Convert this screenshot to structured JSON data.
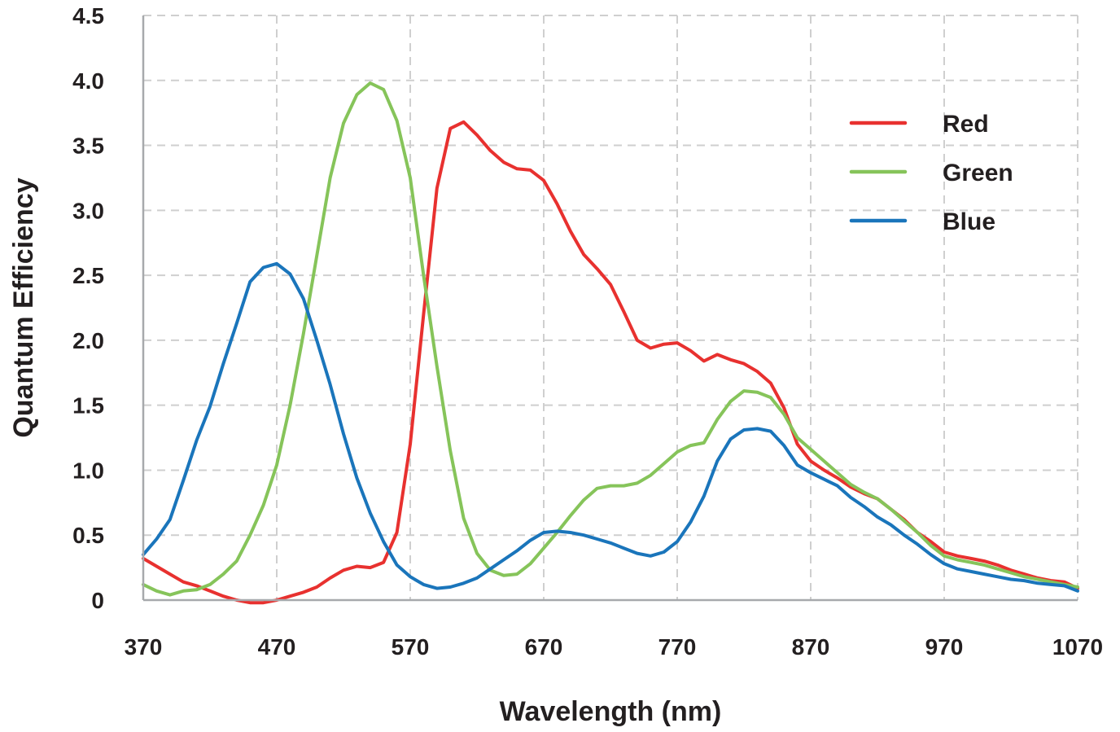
{
  "chart_data": {
    "type": "line",
    "xlabel": "Wavelength (nm)",
    "ylabel": "Quantum Efficiency",
    "xlim": [
      370,
      1070
    ],
    "ylim": [
      0,
      4.5
    ],
    "grid": true,
    "legend_position": "top-right",
    "x_ticks": [
      "370",
      "470",
      "570",
      "670",
      "770",
      "870",
      "970",
      "1070"
    ],
    "x_tick_values": [
      370,
      470,
      570,
      670,
      770,
      870,
      970,
      1070
    ],
    "y_ticks": [
      "0",
      "0.5",
      "1.0",
      "1.5",
      "2.0",
      "2.5",
      "3.0",
      "3.5",
      "4.0",
      "4.5"
    ],
    "y_tick_values": [
      0,
      0.5,
      1.0,
      1.5,
      2.0,
      2.5,
      3.0,
      3.5,
      4.0,
      4.5
    ],
    "series": [
      {
        "name": "Red",
        "color": "#e8312f",
        "x": [
          370,
          380,
          390,
          400,
          410,
          420,
          430,
          440,
          450,
          460,
          470,
          480,
          490,
          500,
          510,
          520,
          530,
          540,
          550,
          560,
          570,
          580,
          590,
          600,
          610,
          620,
          630,
          640,
          650,
          660,
          670,
          680,
          690,
          700,
          710,
          720,
          730,
          740,
          750,
          760,
          770,
          780,
          790,
          800,
          810,
          820,
          830,
          840,
          850,
          860,
          870,
          880,
          890,
          900,
          910,
          920,
          930,
          940,
          950,
          960,
          970,
          980,
          990,
          1000,
          1010,
          1020,
          1030,
          1040,
          1050,
          1060,
          1070
        ],
        "y": [
          0.32,
          0.26,
          0.2,
          0.14,
          0.11,
          0.07,
          0.03,
          0.0,
          -0.02,
          -0.02,
          0.0,
          0.03,
          0.06,
          0.1,
          0.17,
          0.23,
          0.26,
          0.25,
          0.29,
          0.52,
          1.2,
          2.2,
          3.17,
          3.63,
          3.68,
          3.58,
          3.46,
          3.37,
          3.32,
          3.31,
          3.23,
          3.05,
          2.84,
          2.66,
          2.55,
          2.43,
          2.22,
          2.0,
          1.94,
          1.97,
          1.98,
          1.92,
          1.84,
          1.89,
          1.85,
          1.82,
          1.76,
          1.67,
          1.48,
          1.2,
          1.07,
          1.0,
          0.94,
          0.87,
          0.82,
          0.78,
          0.7,
          0.62,
          0.52,
          0.45,
          0.37,
          0.34,
          0.32,
          0.3,
          0.27,
          0.23,
          0.2,
          0.17,
          0.15,
          0.14,
          0.09
        ]
      },
      {
        "name": "Green",
        "color": "#86c45a",
        "x": [
          370,
          380,
          390,
          400,
          410,
          420,
          430,
          440,
          450,
          460,
          470,
          480,
          490,
          500,
          510,
          520,
          530,
          540,
          550,
          560,
          570,
          580,
          590,
          600,
          610,
          620,
          630,
          640,
          650,
          660,
          670,
          680,
          690,
          700,
          710,
          720,
          730,
          740,
          750,
          760,
          770,
          780,
          790,
          800,
          810,
          820,
          830,
          840,
          850,
          860,
          870,
          880,
          890,
          900,
          910,
          920,
          930,
          940,
          950,
          960,
          970,
          980,
          990,
          1000,
          1010,
          1020,
          1030,
          1040,
          1050,
          1060,
          1070
        ],
        "y": [
          0.12,
          0.07,
          0.04,
          0.07,
          0.08,
          0.12,
          0.2,
          0.3,
          0.5,
          0.73,
          1.04,
          1.5,
          2.05,
          2.65,
          3.25,
          3.67,
          3.89,
          3.98,
          3.93,
          3.69,
          3.25,
          2.5,
          1.8,
          1.15,
          0.63,
          0.36,
          0.23,
          0.19,
          0.2,
          0.28,
          0.4,
          0.52,
          0.65,
          0.77,
          0.86,
          0.88,
          0.88,
          0.9,
          0.96,
          1.05,
          1.14,
          1.19,
          1.21,
          1.39,
          1.53,
          1.61,
          1.6,
          1.56,
          1.43,
          1.25,
          1.16,
          1.07,
          0.98,
          0.89,
          0.83,
          0.78,
          0.7,
          0.61,
          0.52,
          0.42,
          0.34,
          0.31,
          0.29,
          0.27,
          0.24,
          0.21,
          0.18,
          0.16,
          0.14,
          0.12,
          0.1
        ]
      },
      {
        "name": "Blue",
        "color": "#1a75bb",
        "x": [
          370,
          380,
          390,
          400,
          410,
          420,
          430,
          440,
          450,
          460,
          470,
          480,
          490,
          500,
          510,
          520,
          530,
          540,
          550,
          560,
          570,
          580,
          590,
          600,
          610,
          620,
          630,
          640,
          650,
          660,
          670,
          680,
          690,
          700,
          710,
          720,
          730,
          740,
          750,
          760,
          770,
          780,
          790,
          800,
          810,
          820,
          830,
          840,
          850,
          860,
          870,
          880,
          890,
          900,
          910,
          920,
          930,
          940,
          950,
          960,
          970,
          980,
          990,
          1000,
          1010,
          1020,
          1030,
          1040,
          1050,
          1060,
          1070
        ],
        "y": [
          0.35,
          0.47,
          0.62,
          0.92,
          1.23,
          1.49,
          1.82,
          2.13,
          2.45,
          2.56,
          2.59,
          2.51,
          2.32,
          2.0,
          1.66,
          1.28,
          0.94,
          0.67,
          0.45,
          0.27,
          0.18,
          0.12,
          0.09,
          0.1,
          0.13,
          0.17,
          0.24,
          0.31,
          0.38,
          0.46,
          0.52,
          0.53,
          0.52,
          0.5,
          0.47,
          0.44,
          0.4,
          0.36,
          0.34,
          0.37,
          0.45,
          0.6,
          0.8,
          1.07,
          1.24,
          1.31,
          1.32,
          1.3,
          1.19,
          1.04,
          0.98,
          0.93,
          0.88,
          0.79,
          0.72,
          0.64,
          0.58,
          0.5,
          0.43,
          0.35,
          0.28,
          0.24,
          0.22,
          0.2,
          0.18,
          0.16,
          0.15,
          0.13,
          0.12,
          0.11,
          0.07
        ]
      }
    ]
  }
}
